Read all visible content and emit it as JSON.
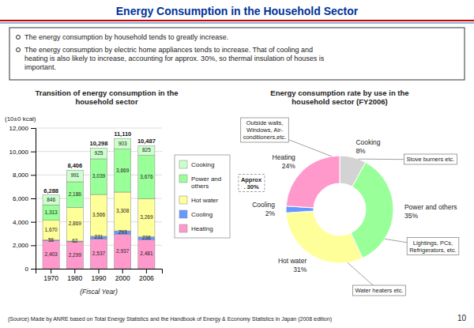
{
  "title": "Energy Consumption in the Household Sector",
  "annotations": [
    "The energy consumption by household tends to greatly increase.",
    "The energy consumption by electric home appliances tends to increase. That of cooling and\nheating is also likely to increase, accounting for approx. 30%, so thermal insulation of houses is\nimportant.",
    "(Source) Made by ANRE based on Total Energy Statistics and the Handbook of Energy & Economy Statistics in Japan (2008 edition)",
    "10"
  ],
  "chart_data": [
    {
      "type": "bar",
      "stacked": true,
      "title": "Transition of energy consumption in the\nhousehold sector",
      "xlabel": "(Fiscal Year)",
      "ylabel": "(10±0 kcal)",
      "categories": [
        "1970",
        "1980",
        "1990",
        "2000",
        "2006"
      ],
      "series": [
        {
          "name": "Heating",
          "color": "#FF99CC",
          "values": [
            2403,
            2299,
            2537,
            2937,
            2481
          ],
          "value_labels": [
            "2,403",
            "2,299",
            "2,537",
            "2,937",
            "2,481"
          ]
        },
        {
          "name": "Cooling",
          "color": "#6699FF",
          "values": [
            56,
            62,
            231,
            293,
            236
          ],
          "value_labels": [
            "56",
            "62",
            "231",
            "293",
            "236"
          ]
        },
        {
          "name": "Hot water",
          "color": "#FFFF99",
          "values": [
            1670,
            2869,
            3566,
            3308,
            3269
          ],
          "value_labels": [
            "1,670",
            "2,869",
            "3,566",
            "3,308",
            "3,269"
          ]
        },
        {
          "name": "Power and\nothers",
          "color": "#99FF99",
          "values": [
            1313,
            2186,
            3039,
            3669,
            3676
          ],
          "value_labels": [
            "1,313",
            "2,186",
            "3,039",
            "3,669",
            "3,676"
          ]
        },
        {
          "name": "Cooking",
          "color": "#CCFFCC",
          "values": [
            846,
            991,
            925,
            903,
            825
          ],
          "value_labels": [
            "846",
            "991",
            "925",
            "903",
            "825"
          ]
        }
      ],
      "totals": [
        6288,
        8406,
        10298,
        11110,
        10487
      ],
      "total_labels": [
        "6,288",
        "8,406",
        "10,298",
        "11,110",
        "10,487"
      ],
      "ylim": [
        0,
        12000
      ],
      "yticks": [
        0,
        {
          "value": 2000,
          "label": "2,000"
        },
        {
          "value": 4000,
          "label": "4,000"
        },
        {
          "value": 6000,
          "label": "6,000"
        },
        {
          "value": 8000,
          "label": "8,000"
        },
        {
          "value": 10000,
          "label": "10,000"
        },
        {
          "value": 12000,
          "label": "12,000"
        }
      ],
      "grid": true,
      "legend": "right",
      "data_labels": true
    },
    {
      "type": "pie",
      "title": "Energy consumption rate by use in the\nhousehold sector (FY2006)",
      "categories": [
        "Cooking",
        "Power and others",
        "Hot water",
        "Cooling",
        "Heating"
      ],
      "values": [
        8,
        35,
        31,
        2,
        24
      ],
      "value_labels": [
        "8%",
        "35%",
        "31%",
        "2%",
        "24%"
      ],
      "colors": [
        "#D3D3D3",
        "#99FF99",
        "#FFFF99",
        "#6699FF",
        "#FF99CC"
      ],
      "data_labels": true,
      "annotations": [
        "Approx\n. 30%",
        "Stove burners etc.",
        "Outside walls,\nWindows, Air-\nconditioners,etc.",
        "Lightings, PCs,\nRefrigerators, etc.",
        "Water heaters etc."
      ]
    }
  ]
}
